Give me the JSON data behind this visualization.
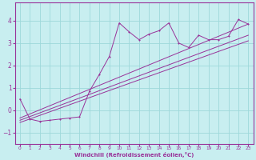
{
  "xlabel": "Windchill (Refroidissement éolien,°C)",
  "bg_color": "#c8eef0",
  "grid_color": "#9ed8da",
  "line_color": "#993399",
  "xlim": [
    -0.5,
    23.5
  ],
  "ylim": [
    -1.5,
    4.8
  ],
  "xticks": [
    0,
    1,
    2,
    3,
    4,
    5,
    6,
    7,
    8,
    9,
    10,
    11,
    12,
    13,
    14,
    15,
    16,
    17,
    18,
    19,
    20,
    21,
    22,
    23
  ],
  "yticks": [
    -1,
    0,
    1,
    2,
    3,
    4
  ],
  "series_main": {
    "x": [
      0,
      1,
      2,
      3,
      4,
      5,
      6,
      7,
      8,
      9,
      10,
      11,
      12,
      13,
      14,
      15,
      16,
      17,
      18,
      19,
      20,
      21,
      22,
      23
    ],
    "y": [
      0.5,
      -0.4,
      -0.5,
      -0.45,
      -0.4,
      -0.35,
      -0.3,
      0.85,
      1.6,
      2.4,
      3.9,
      3.5,
      3.15,
      3.4,
      3.55,
      3.9,
      3.0,
      2.8,
      3.35,
      3.15,
      3.15,
      3.3,
      4.05,
      3.85
    ]
  },
  "series_lin1": {
    "x": [
      0,
      23
    ],
    "y": [
      -0.55,
      3.1
    ]
  },
  "series_lin2": {
    "x": [
      0,
      23
    ],
    "y": [
      -0.45,
      3.35
    ]
  },
  "series_lin3": {
    "x": [
      0,
      23
    ],
    "y": [
      -0.35,
      3.85
    ]
  }
}
